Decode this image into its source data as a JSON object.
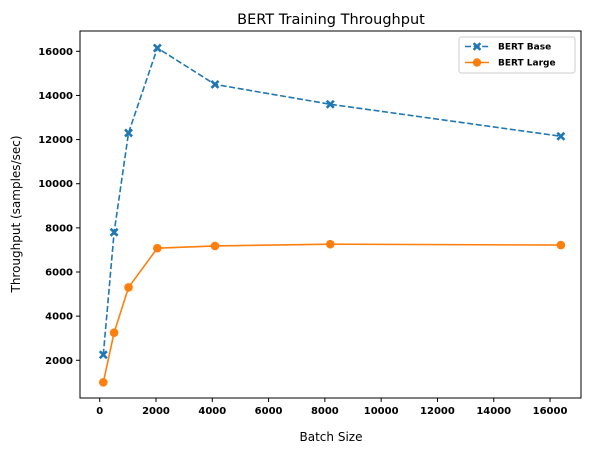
{
  "chart_data": {
    "type": "line",
    "title": "BERT Training Throughput",
    "xlabel": "Batch Size",
    "ylabel": "Throughput (samples/sec)",
    "xlim": [
      -700,
      17100
    ],
    "ylim": [
      290,
      16920
    ],
    "xticks": [
      0,
      2000,
      4000,
      6000,
      8000,
      10000,
      12000,
      14000,
      16000
    ],
    "yticks": [
      2000,
      4000,
      6000,
      8000,
      10000,
      12000,
      14000,
      16000
    ],
    "legend_position": "upper right",
    "grid": false,
    "series": [
      {
        "name": "BERT Base",
        "color": "#1f77b4",
        "linestyle": "dashed",
        "marker": "X",
        "x": [
          128,
          512,
          1024,
          2048,
          4096,
          8192,
          16384
        ],
        "y": [
          2250,
          7800,
          12300,
          16150,
          14500,
          13600,
          12150
        ]
      },
      {
        "name": "BERT Large",
        "color": "#ff7f0e",
        "linestyle": "solid",
        "marker": "o",
        "x": [
          128,
          512,
          1024,
          2048,
          4096,
          8192,
          16384
        ],
        "y": [
          1000,
          3250,
          5300,
          7080,
          7180,
          7260,
          7220
        ]
      }
    ]
  }
}
